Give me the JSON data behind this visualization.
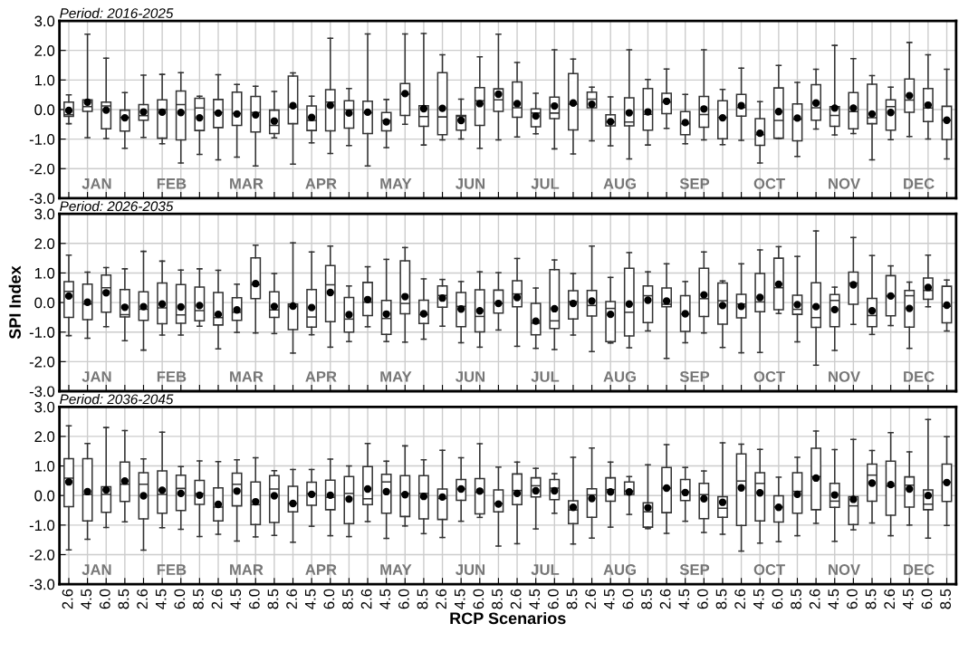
{
  "chart_data": [
    {
      "type": "box",
      "title": "Period: 2016-2025",
      "tick_labels": "y",
      "grid": true,
      "categories": [
        "2.6",
        "4.5",
        "6.0",
        "8.5",
        "2.6",
        "4.5",
        "6.0",
        "8.5",
        "2.6",
        "4.5",
        "6.0",
        "8.5",
        "2.6",
        "4.5",
        "6.0",
        "8.5",
        "2.6",
        "4.5",
        "6.0",
        "8.5",
        "2.6",
        "4.5",
        "6.0",
        "8.5",
        "2.6",
        "4.5",
        "6.0",
        "8.5",
        "2.6",
        "4.5",
        "6.0",
        "8.5",
        "2.6",
        "4.5",
        "6.0",
        "8.5",
        "2.6",
        "4.5",
        "6.0",
        "8.5",
        "2.6",
        "4.5",
        "6.0",
        "8.5",
        "2.6",
        "4.5",
        "6.0",
        "8.5"
      ],
      "ylim": [
        -3,
        3
      ],
      "yticks": [
        {
          "value": -3,
          "label": "-3.0"
        },
        {
          "value": -2,
          "label": "-2.0"
        },
        {
          "value": -1,
          "label": "-1.0"
        },
        {
          "value": 0,
          "label": "0.0"
        },
        {
          "value": 1,
          "label": "1.0"
        },
        {
          "value": 2,
          "label": "2.0"
        },
        {
          "value": 3,
          "label": "3.0"
        }
      ],
      "annotations": [
        "JAN",
        "FEB",
        "MAR",
        "APR",
        "MAY",
        "JUN",
        "JUL",
        "AUG",
        "SEP",
        "OCT",
        "NOV",
        "DEC"
      ],
      "boxes": [
        {
          "low": -0.48,
          "q1": -0.23,
          "median": -0.18,
          "q3": 0.25,
          "high": 0.5,
          "mean": -0.03
        },
        {
          "low": -0.95,
          "q1": -0.06,
          "median": 0.1,
          "q3": 0.33,
          "high": 2.55,
          "mean": 0.25
        },
        {
          "low": -0.98,
          "q1": -0.65,
          "median": 0.12,
          "q3": 0.25,
          "high": 1.74,
          "mean": -0.02
        },
        {
          "low": -1.31,
          "q1": -0.73,
          "median": -0.27,
          "q3": -0.02,
          "high": 0.57,
          "mean": -0.28
        },
        {
          "low": -0.94,
          "q1": -0.36,
          "median": -0.21,
          "q3": 0.17,
          "high": 1.16,
          "mean": -0.08
        },
        {
          "low": -1.16,
          "q1": -0.97,
          "median": 0.0,
          "q3": 0.33,
          "high": 1.19,
          "mean": -0.09
        },
        {
          "low": -1.81,
          "q1": -1.03,
          "median": 0.17,
          "q3": 0.63,
          "high": 1.25,
          "mean": -0.1
        },
        {
          "low": -1.52,
          "q1": -0.71,
          "median": 0.05,
          "q3": 0.38,
          "high": 0.45,
          "mean": -0.28
        },
        {
          "low": -1.7,
          "q1": -0.61,
          "median": -0.1,
          "q3": 0.34,
          "high": 1.18,
          "mean": -0.12
        },
        {
          "low": -1.61,
          "q1": -0.54,
          "median": -0.13,
          "q3": 0.59,
          "high": 0.85,
          "mean": -0.15
        },
        {
          "low": -1.91,
          "q1": -0.76,
          "median": -0.1,
          "q3": 0.44,
          "high": 0.79,
          "mean": -0.18
        },
        {
          "low": -0.96,
          "q1": -0.81,
          "median": -0.54,
          "q3": -0.02,
          "high": 0.61,
          "mean": -0.39
        },
        {
          "low": -1.85,
          "q1": -0.48,
          "median": 0.08,
          "q3": 1.13,
          "high": 1.24,
          "mean": 0.13
        },
        {
          "low": -1.13,
          "q1": -0.71,
          "median": -0.37,
          "q3": 0.12,
          "high": 0.45,
          "mean": -0.27
        },
        {
          "low": -1.49,
          "q1": -0.72,
          "median": 0.25,
          "q3": 0.67,
          "high": 2.41,
          "mean": 0.14
        },
        {
          "low": -1.22,
          "q1": -0.63,
          "median": -0.01,
          "q3": 0.3,
          "high": 0.71,
          "mean": -0.12
        },
        {
          "low": -1.91,
          "q1": -0.81,
          "median": -0.11,
          "q3": 0.28,
          "high": 2.56,
          "mean": -0.09
        },
        {
          "low": -1.29,
          "q1": -0.72,
          "median": -0.37,
          "q3": -0.1,
          "high": 0.34,
          "mean": -0.42
        },
        {
          "low": -0.5,
          "q1": -0.2,
          "median": 0.52,
          "q3": 0.88,
          "high": 2.56,
          "mean": 0.54
        },
        {
          "low": -1.2,
          "q1": -0.57,
          "median": -0.24,
          "q3": 0.13,
          "high": 2.57,
          "mean": 0.03
        },
        {
          "low": -1.03,
          "q1": -0.85,
          "median": -0.25,
          "q3": 1.25,
          "high": 1.85,
          "mean": 0.04
        },
        {
          "low": -1.0,
          "q1": -0.7,
          "median": -0.23,
          "q3": -0.2,
          "high": 0.35,
          "mean": -0.37
        },
        {
          "low": -1.31,
          "q1": -0.54,
          "median": 0.3,
          "q3": 0.74,
          "high": 1.78,
          "mean": 0.2
        },
        {
          "low": -1.03,
          "q1": -0.06,
          "median": 0.33,
          "q3": 0.7,
          "high": 2.55,
          "mean": 0.52
        },
        {
          "low": -0.93,
          "q1": -0.26,
          "median": 0.06,
          "q3": 0.93,
          "high": 1.59,
          "mean": 0.2
        },
        {
          "low": -0.82,
          "q1": -0.58,
          "median": -0.12,
          "q3": 0.02,
          "high": 0.55,
          "mean": -0.22
        },
        {
          "low": -1.33,
          "q1": -0.31,
          "median": -0.12,
          "q3": 0.42,
          "high": 2.02,
          "mean": 0.12
        },
        {
          "low": -1.5,
          "q1": -0.69,
          "median": 0.18,
          "q3": 1.22,
          "high": 1.71,
          "mean": 0.22
        },
        {
          "low": -1.06,
          "q1": 0.06,
          "median": 0.35,
          "q3": 0.59,
          "high": 0.76,
          "mean": 0.18
        },
        {
          "low": -1.23,
          "q1": -0.55,
          "median": -0.42,
          "q3": -0.18,
          "high": 0.43,
          "mean": -0.41
        },
        {
          "low": -1.67,
          "q1": -0.55,
          "median": -0.42,
          "q3": 0.4,
          "high": 2.02,
          "mean": -0.11
        },
        {
          "low": -1.2,
          "q1": -0.7,
          "median": -0.16,
          "q3": 0.71,
          "high": 1.02,
          "mean": -0.08
        },
        {
          "low": -0.64,
          "q1": -0.14,
          "median": 0.25,
          "q3": 0.55,
          "high": 1.37,
          "mean": 0.28
        },
        {
          "low": -1.16,
          "q1": -0.85,
          "median": -0.48,
          "q3": -0.07,
          "high": 0.51,
          "mean": -0.44
        },
        {
          "low": -1.03,
          "q1": -0.6,
          "median": -0.17,
          "q3": 0.44,
          "high": 2.02,
          "mean": 0.02
        },
        {
          "low": -1.19,
          "q1": -0.99,
          "median": -0.27,
          "q3": 0.3,
          "high": 0.68,
          "mean": -0.28
        },
        {
          "low": -1.04,
          "q1": -0.22,
          "median": 0.07,
          "q3": 0.51,
          "high": 1.4,
          "mean": 0.13
        },
        {
          "low": -1.81,
          "q1": -1.21,
          "median": -0.85,
          "q3": -0.31,
          "high": 0.27,
          "mean": -0.8
        },
        {
          "low": -0.98,
          "q1": -0.97,
          "median": -0.37,
          "q3": 0.73,
          "high": 1.49,
          "mean": -0.07
        },
        {
          "low": -1.59,
          "q1": -1.06,
          "median": -0.33,
          "q3": 0.19,
          "high": 0.92,
          "mean": -0.29
        },
        {
          "low": -0.66,
          "q1": -0.36,
          "median": 0.06,
          "q3": 0.84,
          "high": 1.36,
          "mean": 0.22
        },
        {
          "low": -0.86,
          "q1": -0.57,
          "median": -0.2,
          "q3": 0.1,
          "high": 2.17,
          "mean": 0.05
        },
        {
          "low": -0.81,
          "q1": -0.65,
          "median": -0.07,
          "q3": 0.57,
          "high": 1.72,
          "mean": 0.05
        },
        {
          "low": -1.7,
          "q1": -0.48,
          "median": -0.28,
          "q3": 0.86,
          "high": 1.15,
          "mean": -0.15
        },
        {
          "low": -1.02,
          "q1": -0.7,
          "median": 0.1,
          "q3": 0.33,
          "high": 0.76,
          "mean": -0.1
        },
        {
          "low": -0.91,
          "q1": -0.09,
          "median": 0.32,
          "q3": 1.03,
          "high": 2.27,
          "mean": 0.47
        },
        {
          "low": -1.0,
          "q1": -0.41,
          "median": 0.05,
          "q3": 0.71,
          "high": 1.85,
          "mean": 0.15
        },
        {
          "low": -1.67,
          "q1": -1.01,
          "median": -0.36,
          "q3": 0.11,
          "high": 1.36,
          "mean": -0.36
        }
      ]
    },
    {
      "type": "box",
      "title": "Period: 2026-2035",
      "ylabel": "SPI Index",
      "tick_labels": "y",
      "grid": true,
      "categories": [
        "2.6",
        "4.5",
        "6.0",
        "8.5",
        "2.6",
        "4.5",
        "6.0",
        "8.5",
        "2.6",
        "4.5",
        "6.0",
        "8.5",
        "2.6",
        "4.5",
        "6.0",
        "8.5",
        "2.6",
        "4.5",
        "6.0",
        "8.5",
        "2.6",
        "4.5",
        "6.0",
        "8.5",
        "2.6",
        "4.5",
        "6.0",
        "8.5",
        "2.6",
        "4.5",
        "6.0",
        "8.5",
        "2.6",
        "4.5",
        "6.0",
        "8.5",
        "2.6",
        "4.5",
        "6.0",
        "8.5",
        "2.6",
        "4.5",
        "6.0",
        "8.5",
        "2.6",
        "4.5",
        "6.0",
        "8.5"
      ],
      "ylim": [
        -3,
        3
      ],
      "yticks": [
        {
          "value": -3,
          "label": "-3.0"
        },
        {
          "value": -2,
          "label": "-2.0"
        },
        {
          "value": -1,
          "label": "-1.0"
        },
        {
          "value": 0,
          "label": "0.0"
        },
        {
          "value": 1,
          "label": "1.0"
        },
        {
          "value": 2,
          "label": "2.0"
        },
        {
          "value": 3,
          "label": "3.0"
        }
      ],
      "annotations": [
        "JAN",
        "FEB",
        "MAR",
        "APR",
        "MAY",
        "JUN",
        "JUL",
        "AUG",
        "SEP",
        "OCT",
        "NOV",
        "DEC"
      ],
      "boxes": [
        {
          "low": -1.12,
          "q1": -0.5,
          "median": 0.38,
          "q3": 0.71,
          "high": 1.6,
          "mean": 0.22
        },
        {
          "low": -1.21,
          "q1": -0.58,
          "median": -0.05,
          "q3": 0.62,
          "high": 1.03,
          "mean": 0.01
        },
        {
          "low": -0.82,
          "q1": -0.33,
          "median": 0.5,
          "q3": 0.93,
          "high": 1.18,
          "mean": 0.33
        },
        {
          "low": -1.29,
          "q1": -0.49,
          "median": -0.41,
          "q3": 0.44,
          "high": 1.14,
          "mean": -0.16
        },
        {
          "low": -1.61,
          "q1": -0.6,
          "median": -0.23,
          "q3": 0.36,
          "high": 1.73,
          "mean": -0.14
        },
        {
          "low": -1.1,
          "q1": -0.72,
          "median": -0.18,
          "q3": 0.66,
          "high": 1.4,
          "mean": -0.05
        },
        {
          "low": -1.1,
          "q1": -0.7,
          "median": -0.42,
          "q3": 0.61,
          "high": 1.1,
          "mean": -0.15
        },
        {
          "low": -0.8,
          "q1": -0.62,
          "median": -0.27,
          "q3": 0.52,
          "high": 1.14,
          "mean": -0.1
        },
        {
          "low": -1.57,
          "q1": -0.76,
          "median": -0.51,
          "q3": 0.34,
          "high": 1.09,
          "mean": -0.4
        },
        {
          "low": -1.01,
          "q1": -0.6,
          "median": -0.33,
          "q3": 0.16,
          "high": 0.62,
          "mean": -0.25
        },
        {
          "low": -1.03,
          "q1": 0.13,
          "median": 0.6,
          "q3": 1.51,
          "high": 1.94,
          "mean": 0.64
        },
        {
          "low": -1.05,
          "q1": -0.5,
          "median": -0.25,
          "q3": 0.36,
          "high": 0.98,
          "mean": -0.13
        },
        {
          "low": -1.71,
          "q1": -0.92,
          "median": -0.13,
          "q3": -0.05,
          "high": 2.02,
          "mean": -0.12
        },
        {
          "low": -1.09,
          "q1": -0.83,
          "median": -0.49,
          "q3": 0.44,
          "high": 1.71,
          "mean": -0.17
        },
        {
          "low": -1.51,
          "q1": -0.65,
          "median": 0.6,
          "q3": 1.25,
          "high": 1.91,
          "mean": 0.34
        },
        {
          "low": -1.32,
          "q1": -1.0,
          "median": -0.56,
          "q3": 0.17,
          "high": 0.56,
          "mean": -0.41
        },
        {
          "low": -0.82,
          "q1": -0.44,
          "median": 0.01,
          "q3": 0.68,
          "high": 1.21,
          "mean": 0.1
        },
        {
          "low": -1.32,
          "q1": -1.08,
          "median": -0.54,
          "q3": 0.07,
          "high": 1.46,
          "mean": -0.39
        },
        {
          "low": -1.34,
          "q1": -0.38,
          "median": -0.03,
          "q3": 1.41,
          "high": 1.86,
          "mean": 0.2
        },
        {
          "low": -1.24,
          "q1": -0.71,
          "median": -0.41,
          "q3": 0.08,
          "high": 0.8,
          "mean": -0.38
        },
        {
          "low": -0.8,
          "q1": -0.16,
          "median": 0.24,
          "q3": 0.56,
          "high": 0.78,
          "mean": 0.15
        },
        {
          "low": -1.36,
          "q1": -0.82,
          "median": -0.13,
          "q3": 0.34,
          "high": 0.71,
          "mean": -0.22
        },
        {
          "low": -1.51,
          "q1": -0.99,
          "median": -0.47,
          "q3": 0.43,
          "high": 1.04,
          "mean": -0.28
        },
        {
          "low": -0.93,
          "q1": -0.36,
          "median": -0.03,
          "q3": 0.42,
          "high": 1.01,
          "mean": -0.03
        },
        {
          "low": -1.48,
          "q1": -0.14,
          "median": 0.29,
          "q3": 0.74,
          "high": 1.49,
          "mean": 0.17
        },
        {
          "low": -1.55,
          "q1": -1.09,
          "median": -0.7,
          "q3": -0.03,
          "high": 0.49,
          "mean": -0.63
        },
        {
          "low": -1.59,
          "q1": -0.88,
          "median": -0.62,
          "q3": 1.11,
          "high": 1.44,
          "mean": -0.21
        },
        {
          "low": -1.1,
          "q1": -0.56,
          "median": 0.03,
          "q3": 0.4,
          "high": 0.98,
          "mean": -0.03
        },
        {
          "low": -1.66,
          "q1": -0.46,
          "median": -0.1,
          "q3": 0.41,
          "high": 1.91,
          "mean": 0.05
        },
        {
          "low": -1.37,
          "q1": -1.32,
          "median": -0.2,
          "q3": 0.03,
          "high": 0.85,
          "mean": -0.4
        },
        {
          "low": -1.53,
          "q1": -1.13,
          "median": -0.33,
          "q3": 1.16,
          "high": 1.69,
          "mean": -0.05
        },
        {
          "low": -0.96,
          "q1": -0.68,
          "median": 0.23,
          "q3": 0.56,
          "high": 1.04,
          "mean": 0.08
        },
        {
          "low": -1.89,
          "q1": -0.14,
          "median": -0.06,
          "q3": 0.49,
          "high": 1.31,
          "mean": 0.05
        },
        {
          "low": -1.36,
          "q1": -0.98,
          "median": -0.39,
          "q3": 0.23,
          "high": 0.71,
          "mean": -0.38
        },
        {
          "low": -1.03,
          "q1": -0.47,
          "median": 0.13,
          "q3": 1.16,
          "high": 1.71,
          "mean": 0.26
        },
        {
          "low": -1.52,
          "q1": -0.73,
          "median": 0.06,
          "q3": 0.66,
          "high": 0.73,
          "mean": -0.1
        },
        {
          "low": -1.7,
          "q1": -0.52,
          "median": -0.05,
          "q3": 0.28,
          "high": 1.31,
          "mean": -0.13
        },
        {
          "low": -1.69,
          "q1": -0.31,
          "median": 0.02,
          "q3": 0.98,
          "high": 1.78,
          "mean": 0.17
        },
        {
          "low": -0.37,
          "q1": -0.24,
          "median": 0.5,
          "q3": 1.5,
          "high": 1.89,
          "mean": 0.62
        },
        {
          "low": -1.33,
          "q1": -0.4,
          "median": -0.23,
          "q3": 0.25,
          "high": 1.56,
          "mean": -0.07
        },
        {
          "low": -2.12,
          "q1": -0.84,
          "median": -0.51,
          "q3": 0.67,
          "high": 2.42,
          "mean": -0.14
        },
        {
          "low": -1.62,
          "q1": -0.82,
          "median": 0.07,
          "q3": 0.27,
          "high": 0.52,
          "mean": -0.24
        },
        {
          "low": -0.74,
          "q1": -0.06,
          "median": 0.66,
          "q3": 1.03,
          "high": 2.2,
          "mean": 0.6
        },
        {
          "low": -1.08,
          "q1": -0.82,
          "median": -0.44,
          "q3": 0.14,
          "high": 1.59,
          "mean": -0.28
        },
        {
          "low": -0.78,
          "q1": -0.45,
          "median": 0.22,
          "q3": 0.91,
          "high": 1.24,
          "mean": 0.22
        },
        {
          "low": -1.55,
          "q1": -0.83,
          "median": 0.23,
          "q3": 0.41,
          "high": 0.69,
          "mean": -0.2
        },
        {
          "low": -0.14,
          "q1": 0.11,
          "median": 0.41,
          "q3": 0.83,
          "high": 1.6,
          "mean": 0.51
        },
        {
          "low": -0.96,
          "q1": -0.69,
          "median": -0.13,
          "q3": 0.55,
          "high": 0.76,
          "mean": -0.09
        }
      ]
    },
    {
      "type": "box",
      "title": "Period: 2036-2045",
      "xlabel": "RCP Scenarios",
      "grid": true,
      "categories": [
        "2.6",
        "4.5",
        "6.0",
        "8.5",
        "2.6",
        "4.5",
        "6.0",
        "8.5",
        "2.6",
        "4.5",
        "6.0",
        "8.5",
        "2.6",
        "4.5",
        "6.0",
        "8.5",
        "2.6",
        "4.5",
        "6.0",
        "8.5",
        "2.6",
        "4.5",
        "6.0",
        "8.5",
        "2.6",
        "4.5",
        "6.0",
        "8.5",
        "2.6",
        "4.5",
        "6.0",
        "8.5",
        "2.6",
        "4.5",
        "6.0",
        "8.5",
        "2.6",
        "4.5",
        "6.0",
        "8.5",
        "2.6",
        "4.5",
        "6.0",
        "8.5",
        "2.6",
        "4.5",
        "6.0",
        "8.5"
      ],
      "ylim": [
        -3,
        3
      ],
      "yticks": [
        {
          "value": -3,
          "label": "-3.0"
        },
        {
          "value": -2,
          "label": "-2.0"
        },
        {
          "value": -1,
          "label": "-1.0"
        },
        {
          "value": 0,
          "label": "0.0"
        },
        {
          "value": 1,
          "label": "1.0"
        },
        {
          "value": 2,
          "label": "2.0"
        },
        {
          "value": 3,
          "label": "3.0"
        }
      ],
      "annotations": [
        "JAN",
        "FEB",
        "MAR",
        "APR",
        "MAY",
        "JUN",
        "JUL",
        "AUG",
        "SEP",
        "OCT",
        "NOV",
        "DEC"
      ],
      "boxes": [
        {
          "low": -1.84,
          "q1": -0.38,
          "median": 0.59,
          "q3": 1.25,
          "high": 2.36,
          "mean": 0.46
        },
        {
          "low": -1.48,
          "q1": -0.86,
          "median": 0.04,
          "q3": 1.25,
          "high": 1.76,
          "mean": 0.13
        },
        {
          "low": -1.08,
          "q1": -0.57,
          "median": 0.04,
          "q3": 0.3,
          "high": 2.3,
          "mean": 0.19
        },
        {
          "low": -0.89,
          "q1": -0.2,
          "median": 0.38,
          "q3": 1.13,
          "high": 2.2,
          "mean": 0.49
        },
        {
          "low": -1.85,
          "q1": -0.79,
          "median": 0.38,
          "q3": 0.77,
          "high": 1.24,
          "mean": -0.01
        },
        {
          "low": -1.09,
          "q1": -0.6,
          "median": 0.04,
          "q3": 0.83,
          "high": 2.14,
          "mean": 0.18
        },
        {
          "low": -1.14,
          "q1": -0.51,
          "median": 0.24,
          "q3": 0.69,
          "high": 0.98,
          "mean": 0.07
        },
        {
          "low": -1.39,
          "q1": -0.3,
          "median": 0.07,
          "q3": 0.51,
          "high": 1.17,
          "mean": 0.01
        },
        {
          "low": -1.31,
          "q1": -0.86,
          "median": -0.39,
          "q3": 0.26,
          "high": 1.15,
          "mean": -0.3
        },
        {
          "low": -1.54,
          "q1": -0.35,
          "median": 0.38,
          "q3": 0.76,
          "high": 1.21,
          "mean": 0.15
        },
        {
          "low": -1.4,
          "q1": -0.98,
          "median": -0.31,
          "q3": 0.46,
          "high": 1.28,
          "mean": -0.21
        },
        {
          "low": -1.35,
          "q1": -0.91,
          "median": 0.22,
          "q3": 0.67,
          "high": 0.84,
          "mean": -0.01
        },
        {
          "low": -1.58,
          "q1": -0.55,
          "median": -0.27,
          "q3": 0.31,
          "high": 0.88,
          "mean": -0.27
        },
        {
          "low": -1.04,
          "q1": -0.33,
          "median": 0.06,
          "q3": 0.45,
          "high": 0.88,
          "mean": 0.04
        },
        {
          "low": -1.36,
          "q1": -0.48,
          "median": -0.06,
          "q3": 0.52,
          "high": 1.23,
          "mean": 0.01
        },
        {
          "low": -1.39,
          "q1": -0.95,
          "median": 0.07,
          "q3": 0.64,
          "high": 1.0,
          "mean": -0.12
        },
        {
          "low": -0.88,
          "q1": -0.31,
          "median": -0.11,
          "q3": 0.98,
          "high": 1.76,
          "mean": 0.22
        },
        {
          "low": -1.45,
          "q1": -0.6,
          "median": 0.46,
          "q3": 0.72,
          "high": 1.16,
          "mean": 0.13
        },
        {
          "low": -1.03,
          "q1": -0.71,
          "median": 0.06,
          "q3": 0.67,
          "high": 1.68,
          "mean": 0.03
        },
        {
          "low": -1.29,
          "q1": -0.79,
          "median": 0.07,
          "q3": 0.67,
          "high": 1.21,
          "mean": -0.03
        },
        {
          "low": -1.42,
          "q1": -0.81,
          "median": -0.1,
          "q3": 0.22,
          "high": 1.53,
          "mean": -0.05
        },
        {
          "low": -0.87,
          "q1": -0.16,
          "median": 0.22,
          "q3": 0.54,
          "high": 1.28,
          "mean": 0.22
        },
        {
          "low": -0.74,
          "q1": -0.62,
          "median": 0.11,
          "q3": 0.57,
          "high": 1.75,
          "mean": 0.15
        },
        {
          "low": -1.71,
          "q1": -0.55,
          "median": -0.27,
          "q3": 0.19,
          "high": 0.96,
          "mean": -0.29
        },
        {
          "low": -1.63,
          "q1": -0.31,
          "median": 0.17,
          "q3": 0.73,
          "high": 1.13,
          "mean": 0.07
        },
        {
          "low": -1.13,
          "q1": -0.05,
          "median": 0.33,
          "q3": 0.6,
          "high": 0.92,
          "mean": 0.16
        },
        {
          "low": -0.6,
          "q1": -0.14,
          "median": 0.25,
          "q3": 0.54,
          "high": 0.74,
          "mean": 0.16
        },
        {
          "low": -1.64,
          "q1": -0.95,
          "median": -0.49,
          "q3": -0.18,
          "high": 1.29,
          "mean": -0.4
        },
        {
          "low": -1.44,
          "q1": -0.74,
          "median": 0.02,
          "q3": 0.23,
          "high": 1.61,
          "mean": -0.1
        },
        {
          "low": -1.07,
          "q1": -0.19,
          "median": 0.2,
          "q3": 0.6,
          "high": 1.13,
          "mean": 0.12
        },
        {
          "low": -0.64,
          "q1": 0.04,
          "median": 0.15,
          "q3": 0.46,
          "high": 0.64,
          "mean": 0.12
        },
        {
          "low": -1.12,
          "q1": -1.07,
          "median": -0.55,
          "q3": -0.25,
          "high": 1.04,
          "mean": -0.41
        },
        {
          "low": -1.28,
          "q1": -0.58,
          "median": 0.25,
          "q3": 0.95,
          "high": 1.72,
          "mean": 0.25
        },
        {
          "low": -0.87,
          "q1": -0.17,
          "median": 0.12,
          "q3": 0.54,
          "high": 0.95,
          "mean": 0.1
        },
        {
          "low": -1.25,
          "q1": -0.78,
          "median": 0.03,
          "q3": 0.41,
          "high": 0.83,
          "mean": -0.11
        },
        {
          "low": -1.31,
          "q1": -0.74,
          "median": -0.43,
          "q3": -0.04,
          "high": 1.78,
          "mean": -0.23
        },
        {
          "low": -1.88,
          "q1": -1.01,
          "median": 0.49,
          "q3": 1.41,
          "high": 1.74,
          "mean": 0.26
        },
        {
          "low": -1.61,
          "q1": -0.86,
          "median": 0.41,
          "q3": 0.77,
          "high": 1.56,
          "mean": 0.09
        },
        {
          "low": -1.56,
          "q1": -0.9,
          "median": -0.39,
          "q3": -0.01,
          "high": 0.62,
          "mean": -0.4
        },
        {
          "low": -1.36,
          "q1": -0.6,
          "median": 0.14,
          "q3": 0.77,
          "high": 1.29,
          "mean": 0.04
        },
        {
          "low": -0.94,
          "q1": -0.48,
          "median": 0.64,
          "q3": 1.6,
          "high": 2.18,
          "mean": 0.59
        },
        {
          "low": -1.55,
          "q1": -0.4,
          "median": -0.19,
          "q3": 0.41,
          "high": 1.55,
          "mean": 0.02
        },
        {
          "low": -1.16,
          "q1": -0.98,
          "median": -0.35,
          "q3": -0.04,
          "high": 1.9,
          "mean": -0.13
        },
        {
          "low": -0.93,
          "q1": -0.19,
          "median": 0.69,
          "q3": 1.06,
          "high": 1.52,
          "mean": 0.42
        },
        {
          "low": -1.36,
          "q1": -0.67,
          "median": 0.32,
          "q3": 1.16,
          "high": 2.13,
          "mean": 0.37
        },
        {
          "low": -1.0,
          "q1": -0.39,
          "median": 0.35,
          "q3": 0.63,
          "high": 1.48,
          "mean": 0.22
        },
        {
          "low": -1.44,
          "q1": -0.48,
          "median": -0.29,
          "q3": 0.19,
          "high": 2.57,
          "mean": 0.0
        },
        {
          "low": -1.01,
          "q1": -0.2,
          "median": 0.45,
          "q3": 1.06,
          "high": 1.99,
          "mean": 0.44
        }
      ]
    }
  ]
}
